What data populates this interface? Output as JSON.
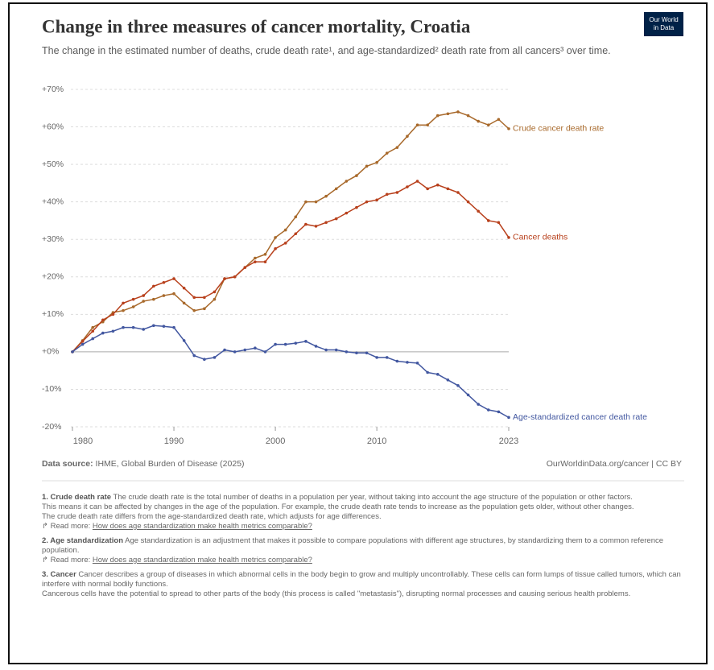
{
  "chart_data": {
    "type": "line",
    "title": "Change in three measures of cancer mortality, Croatia",
    "subtitle": "The change in the estimated number of deaths, crude death rate¹, and age-standardized² death rate from all cancers³ over time.",
    "logo": [
      "Our World",
      "in Data"
    ],
    "x": [
      1980,
      1981,
      1982,
      1983,
      1984,
      1985,
      1986,
      1987,
      1988,
      1989,
      1990,
      1991,
      1992,
      1993,
      1994,
      1995,
      1996,
      1997,
      1998,
      1999,
      2000,
      2001,
      2002,
      2003,
      2004,
      2005,
      2006,
      2007,
      2008,
      2009,
      2010,
      2011,
      2012,
      2013,
      2014,
      2015,
      2016,
      2017,
      2018,
      2019,
      2020,
      2021,
      2022,
      2023
    ],
    "series": [
      {
        "name": "Crude cancer death rate",
        "color": "#a8692b",
        "values": [
          0,
          3,
          6.5,
          8,
          10.5,
          11,
          12,
          13.5,
          14,
          15,
          15.5,
          13,
          11,
          11.5,
          14,
          19.5,
          20,
          22.5,
          25,
          26,
          30.5,
          32.5,
          36,
          40,
          40,
          41.5,
          43.5,
          45.5,
          47,
          49.5,
          50.5,
          53,
          54.5,
          57.5,
          60.5,
          60.5,
          63,
          63.5,
          64,
          63,
          61.5,
          60.5,
          62,
          59.5
        ]
      },
      {
        "name": "Cancer deaths",
        "color": "#b8401c",
        "values": [
          0,
          2.8,
          5.5,
          8.5,
          10,
          13,
          14,
          15,
          17.5,
          18.5,
          19.5,
          17,
          14.5,
          14.5,
          16,
          19.5,
          20,
          22.5,
          24,
          24,
          27.5,
          29,
          31.5,
          34,
          33.5,
          34.5,
          35.5,
          37,
          38.5,
          40,
          40.5,
          42,
          42.5,
          44,
          45.5,
          43.5,
          44.5,
          43.5,
          42.5,
          40,
          37.5,
          35,
          34.5,
          30.5
        ]
      },
      {
        "name": "Age-standardized cancer death rate",
        "color": "#4257a0",
        "values": [
          0,
          2,
          3.5,
          5,
          5.5,
          6.5,
          6.5,
          6,
          7,
          6.8,
          6.5,
          3,
          -1,
          -2,
          -1.5,
          0.5,
          0,
          0.5,
          1,
          0,
          2,
          2,
          2.3,
          2.8,
          1.5,
          0.5,
          0.5,
          0,
          -0.3,
          -0.3,
          -1.5,
          -1.5,
          -2.5,
          -2.8,
          -3,
          -5.5,
          -6,
          -7.5,
          -9,
          -11.5,
          -14,
          -15.5,
          -16,
          -17.5
        ]
      }
    ],
    "xlim": [
      1980,
      2023
    ],
    "xticks": [
      1980,
      1990,
      2000,
      2010,
      2023
    ],
    "ylim": [
      -20,
      70
    ],
    "yticks": [
      {
        "value": -20,
        "label": "-20%"
      },
      {
        "value": -10,
        "label": "-10%"
      },
      {
        "value": 0,
        "label": "+0%"
      },
      {
        "value": 10,
        "label": "+10%"
      },
      {
        "value": 20,
        "label": "+20%"
      },
      {
        "value": 30,
        "label": "+30%"
      },
      {
        "value": 40,
        "label": "+40%"
      },
      {
        "value": 50,
        "label": "+50%"
      },
      {
        "value": 60,
        "label": "+60%"
      },
      {
        "value": 70,
        "label": "+70%"
      }
    ],
    "grid": true,
    "source_label": "Data source:",
    "source": "IHME, Global Burden of Disease (2025)",
    "credit": "OurWorldinData.org/cancer | CC BY"
  },
  "notes": [
    {
      "title": "1. Crude death rate",
      "paragraphs": [
        "The crude death rate is the total number of deaths in a population per year, without taking into account the age structure of the population or other factors.",
        "This means it can be affected by changes in the age of the population. For example, the crude death rate tends to increase as the population gets older, without other changes.",
        "The crude death rate differs from the age-standardized death rate, which adjusts for age differences."
      ],
      "read_more": "Read more:",
      "link": "How does age standardization make health metrics comparable?"
    },
    {
      "title": "2. Age standardization",
      "paragraphs": [
        "Age standardization is an adjustment that makes it possible to compare populations with different age structures, by standardizing them to a common reference population."
      ],
      "read_more": "Read more:",
      "link": "How does age standardization make health metrics comparable?"
    },
    {
      "title": "3. Cancer",
      "paragraphs": [
        "Cancer describes a group of diseases in which abnormal cells in the body begin to grow and multiply uncontrollably. These cells can form lumps of tissue called tumors, which can interfere with normal bodily functions.",
        "Cancerous cells have the potential to spread to other parts of the body (this process is called \"metastasis\"), disrupting normal processes and causing serious health problems."
      ]
    }
  ]
}
